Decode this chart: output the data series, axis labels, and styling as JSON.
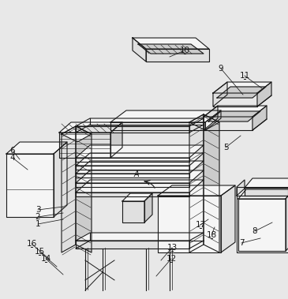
{
  "bg_color": "#e8e8e8",
  "line_color": "#1a1a1a",
  "lw": 0.8,
  "lw_thin": 0.4,
  "fill_white": "#f5f5f5",
  "fill_light": "#e0e0e0",
  "fill_mid": "#cccccc",
  "fill_dark": "#b8b8b8"
}
